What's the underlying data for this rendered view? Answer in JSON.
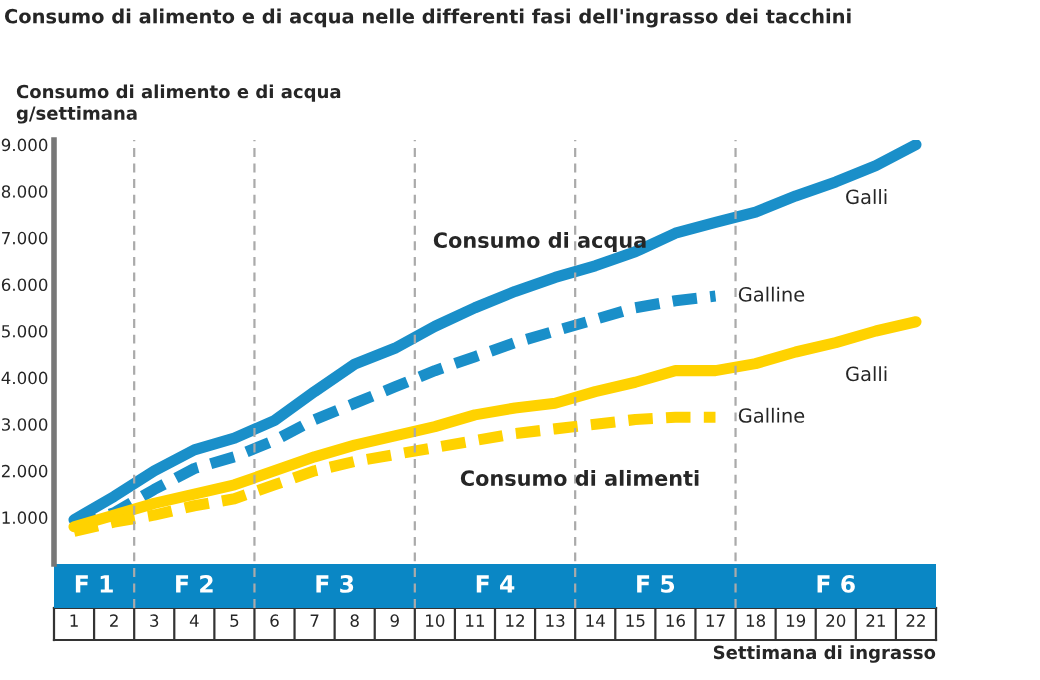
{
  "chart_data": {
    "type": "line",
    "title": "Consumo di alimento e di acqua nelle differenti fasi dell'ingrasso dei tacchini",
    "ylabel": "Consumo di alimento e di acqua\ng/settimana",
    "xlabel": "Settimana di ingrasso",
    "x": [
      1,
      2,
      3,
      4,
      5,
      6,
      7,
      8,
      9,
      10,
      11,
      12,
      13,
      14,
      15,
      16,
      17,
      18,
      19,
      20,
      21,
      22
    ],
    "series": [
      {
        "name": "Galli",
        "color": "#1a8fc9",
        "line_style": "solid",
        "values": [
          950,
          1450,
          2000,
          2450,
          2700,
          3080,
          3700,
          4290,
          4630,
          5100,
          5500,
          5850,
          6150,
          6400,
          6700,
          7100,
          7330,
          7550,
          7900,
          8200,
          8550,
          9000
        ]
      },
      {
        "name": "Galline",
        "color": "#1a8fc9",
        "line_style": "dashed",
        "values": [
          800,
          1100,
          1600,
          2050,
          2300,
          2650,
          3100,
          3450,
          3800,
          4150,
          4450,
          4750,
          5000,
          5250,
          5500,
          5650,
          5750,
          null,
          null,
          null,
          null,
          null
        ]
      },
      {
        "name": "Galli",
        "color": "#ffd200",
        "line_style": "solid",
        "values": [
          800,
          1050,
          1300,
          1500,
          1700,
          2000,
          2300,
          2550,
          2750,
          2950,
          3200,
          3350,
          3450,
          3700,
          3900,
          4150,
          4150,
          4300,
          4550,
          4750,
          5000,
          5200
        ]
      },
      {
        "name": "Galline",
        "color": "#ffd200",
        "line_style": "dashed",
        "values": [
          700,
          900,
          1050,
          1250,
          1400,
          1700,
          2000,
          2200,
          2350,
          2500,
          2650,
          2800,
          2900,
          3000,
          3100,
          3150,
          3150,
          null,
          null,
          null,
          null,
          null
        ]
      }
    ],
    "annotations": [
      "Consumo di acqua",
      "Consumo di alimenti",
      "F 1",
      "F 2",
      "F 3",
      "F 4",
      "F 5",
      "F 6"
    ],
    "xlim": [
      0.5,
      22.5
    ],
    "xticks": [
      1,
      2,
      3,
      4,
      5,
      6,
      7,
      8,
      9,
      10,
      11,
      12,
      13,
      14,
      15,
      16,
      17,
      18,
      19,
      20,
      21,
      22
    ],
    "ylim": [
      0,
      9100
    ],
    "yticks": [
      {
        "value": 1000,
        "label": "1.000"
      },
      {
        "value": 2000,
        "label": "2.000"
      },
      {
        "value": 3000,
        "label": "3.000"
      },
      {
        "value": 4000,
        "label": "4.000"
      },
      {
        "value": 5000,
        "label": "5.000"
      },
      {
        "value": 6000,
        "label": "6.000"
      },
      {
        "value": 7000,
        "label": "7.000"
      },
      {
        "value": 8000,
        "label": "8.000"
      },
      {
        "value": 9000,
        "label": "9.000"
      }
    ],
    "ref_lines": [
      {
        "axis": "x",
        "value": 2.5,
        "label": null,
        "color": "#aaaaaa",
        "line_style": "dashed"
      },
      {
        "axis": "x",
        "value": 5.5,
        "label": null,
        "color": "#aaaaaa",
        "line_style": "dashed"
      },
      {
        "axis": "x",
        "value": 9.5,
        "label": null,
        "color": "#aaaaaa",
        "line_style": "dashed"
      },
      {
        "axis": "x",
        "value": 13.5,
        "label": null,
        "color": "#aaaaaa",
        "line_style": "dashed"
      },
      {
        "axis": "x",
        "value": 17.5,
        "label": null,
        "color": "#aaaaaa",
        "line_style": "dashed"
      }
    ],
    "grid": false,
    "legend": false,
    "marker": "none"
  }
}
